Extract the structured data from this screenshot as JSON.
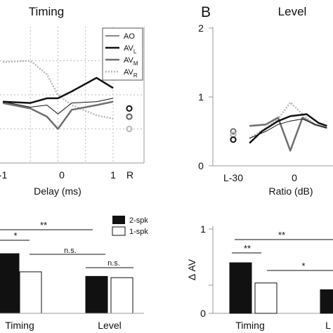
{
  "figure": {
    "panel_b_letter": "B"
  },
  "colors": {
    "AO": "#111111",
    "AV_L": "#111111",
    "AV_M": "#6e6e6e",
    "AV_R": "#b8b8b8",
    "two_spk": "#111111",
    "one_spk": "#ffffff"
  },
  "chart_data": [
    {
      "id": "timing-line",
      "type": "line",
      "title": "Timing",
      "xlabel": "Delay (ms)",
      "ylabel": "",
      "xlim": [
        -1,
        1
      ],
      "ylim": [
        0,
        2
      ],
      "x": [
        -1,
        -0.5,
        -0.2,
        0,
        0.25,
        0.7,
        1
      ],
      "xtick_labels": [
        "-1",
        "0",
        "1",
        "R"
      ],
      "legend": {
        "placement": "top-right",
        "entries": [
          "AO",
          "AV",
          "AV",
          "AV"
        ],
        "subscripts": [
          "",
          "L",
          "M",
          "R"
        ]
      },
      "series": [
        {
          "name": "AO",
          "style": "solid-thin",
          "values": [
            0.9,
            0.82,
            0.85,
            0.72,
            0.88,
            0.9,
            0.95
          ],
          "marker_R": 0.68
        },
        {
          "name": "AV_L",
          "style": "solid-thick",
          "values": [
            0.9,
            0.88,
            0.95,
            0.95,
            1.05,
            1.25,
            1.1
          ],
          "marker_R": 0.8
        },
        {
          "name": "AV_M",
          "style": "solid-thick-gray",
          "values": [
            0.88,
            0.8,
            0.68,
            0.5,
            0.78,
            0.85,
            0.9
          ],
          "marker_R": 0.68
        },
        {
          "name": "AV_R",
          "style": "dotted",
          "values": [
            1.48,
            1.5,
            1.3,
            1.0,
            0.85,
            0.7,
            0.65
          ],
          "marker_R": 0.5
        }
      ]
    },
    {
      "id": "level-line",
      "type": "line",
      "title": "Level",
      "xlabel": "Ratio (dB)",
      "ylabel": "",
      "ylim": [
        0,
        2
      ],
      "yticks": [
        "0",
        "1",
        "2"
      ],
      "xtick_labels": [
        "L-30",
        "0"
      ],
      "series": [
        {
          "name": "AO",
          "style": "solid-thin",
          "x": [
            -22,
            -14,
            -8,
            -2,
            4,
            10,
            16
          ],
          "values": [
            0.4,
            0.5,
            0.6,
            0.65,
            0.68,
            0.6,
            0.55
          ]
        },
        {
          "name": "AV_L",
          "style": "solid-thick",
          "x": [
            -22,
            -16,
            -8,
            -2,
            6,
            12,
            16
          ],
          "values": [
            0.33,
            0.5,
            0.65,
            0.72,
            0.75,
            0.62,
            0.58
          ]
        },
        {
          "name": "AV_M",
          "style": "solid-thick-gray",
          "x": [
            -22,
            -14,
            -8,
            -2,
            4,
            10,
            16
          ],
          "values": [
            0.58,
            0.6,
            0.7,
            0.22,
            0.7,
            0.6,
            0.55
          ]
        },
        {
          "name": "AV_R",
          "style": "dotted",
          "x": [
            -22,
            -14,
            -8,
            -2,
            4,
            10,
            16
          ],
          "values": [
            0.4,
            0.55,
            0.68,
            0.92,
            0.75,
            0.6,
            0.55
          ]
        }
      ],
      "markers_L": [
        0.5,
        0.45,
        0.38
      ]
    },
    {
      "id": "timing-level-bar",
      "type": "bar",
      "categories": [
        "Timing",
        "Level"
      ],
      "legend": {
        "placement": "top-right",
        "entries": [
          "2-spk",
          "1-spk"
        ]
      },
      "ylim": [
        0,
        1
      ],
      "series": [
        {
          "name": "2-spk",
          "values": [
            0.92,
            0.57
          ]
        },
        {
          "name": "1-spk",
          "values": [
            0.64,
            0.55
          ]
        }
      ],
      "significance": {
        "timing_pair": "*",
        "timing_vs_level": "**",
        "level_pair": "n.s.",
        "cross": "n.s."
      }
    },
    {
      "id": "delta-av-bar",
      "type": "bar",
      "ylabel": "Δ AV",
      "ylim": [
        0,
        1
      ],
      "yticks": [
        "0",
        "1"
      ],
      "categories": [
        "Timing",
        "L"
      ],
      "series": [
        {
          "name": "2-spk",
          "values": [
            0.6,
            0.28
          ]
        },
        {
          "name": "1-spk",
          "values": [
            0.36,
            null
          ]
        }
      ],
      "significance": {
        "timing_pair": "**",
        "timing_vs_level": "**",
        "cross": "*"
      }
    }
  ]
}
